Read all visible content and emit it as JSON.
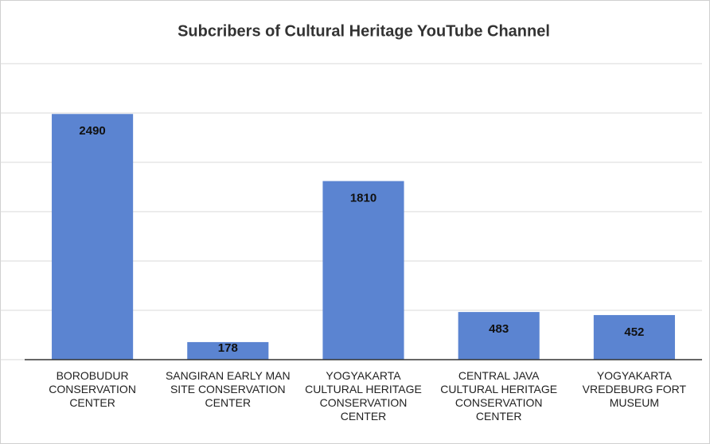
{
  "chart_data": {
    "type": "bar",
    "title": "Subcribers of Cultural Heritage YouTube Channel",
    "categories": [
      "BOROBUDUR CONSERVATION CENTER",
      "SANGIRAN EARLY MAN SITE CONSERVATION CENTER",
      "YOGYAKARTA CULTURAL HERITAGE CONSERVATION CENTER",
      "CENTRAL JAVA CULTURAL HERITAGE CONSERVATION CENTER",
      "YOGYAKARTA VREDEBURG FORT MUSEUM"
    ],
    "values": [
      2490,
      178,
      1810,
      483,
      452
    ],
    "color": "#5b84d1",
    "ylim": [
      0,
      3000
    ],
    "yticks": [
      0,
      500,
      1000,
      1500,
      2000,
      2500,
      3000
    ],
    "grid": true
  }
}
